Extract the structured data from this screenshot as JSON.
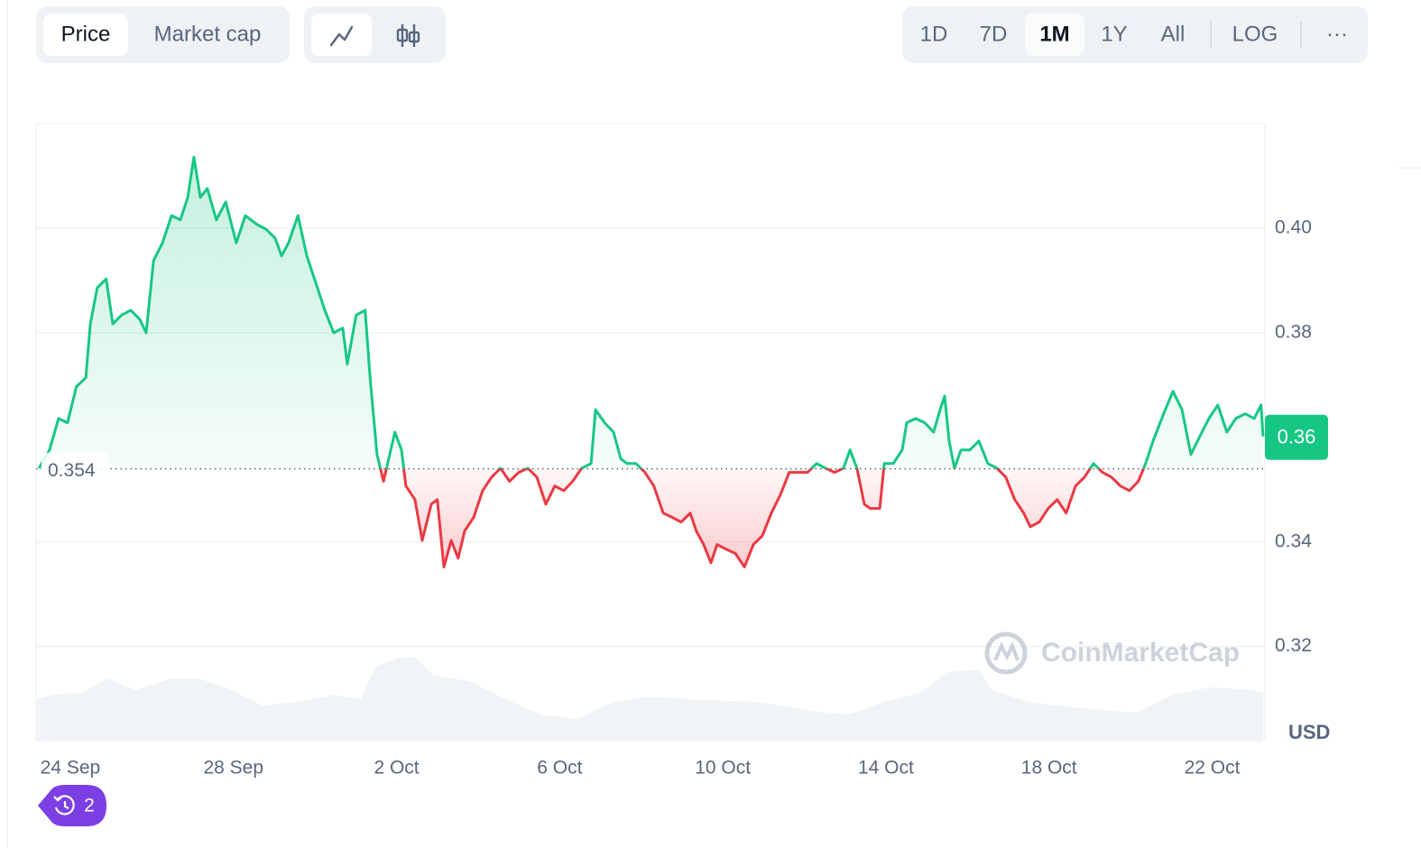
{
  "toolbar": {
    "price": "Price",
    "market_cap": "Market cap",
    "ranges": [
      "1D",
      "7D",
      "1M",
      "1Y",
      "All"
    ],
    "active_range_index": 2,
    "log": "LOG",
    "more": "···"
  },
  "badge": "2",
  "watermark": "CoinMarketCap",
  "chart_data": {
    "type": "line",
    "x": [
      -0.77,
      -0.51,
      -0.29,
      -0.07,
      0.15,
      0.38,
      0.49,
      0.66,
      0.88,
      1.04,
      1.26,
      1.48,
      1.7,
      1.86,
      2.04,
      2.26,
      2.48,
      2.7,
      2.88,
      3.03,
      3.19,
      3.36,
      3.58,
      3.81,
      4.07,
      4.29,
      4.58,
      4.8,
      5.02,
      5.18,
      5.35,
      5.58,
      5.8,
      6.02,
      6.24,
      6.46,
      6.68,
      6.79,
      7.01,
      7.23,
      7.35,
      7.52,
      7.68,
      7.83,
      7.96,
      8.12,
      8.23,
      8.45,
      8.63,
      8.85,
      9.0,
      9.16,
      9.34,
      9.51,
      9.67,
      9.89,
      10.11,
      10.33,
      10.55,
      10.77,
      11.0,
      11.22,
      11.44,
      11.66,
      11.88,
      12.1,
      12.32,
      12.54,
      12.77,
      12.88,
      13.1,
      13.32,
      13.5,
      13.65,
      13.87,
      14.09,
      14.31,
      14.54,
      14.76,
      14.98,
      15.2,
      15.35,
      15.53,
      15.71,
      15.86,
      16.08,
      16.31,
      16.53,
      16.75,
      16.97,
      17.19,
      17.41,
      17.63,
      17.85,
      18.08,
      18.3,
      18.52,
      18.74,
      18.96,
      19.12,
      19.29,
      19.47,
      19.62,
      19.85,
      19.96,
      20.18,
      20.4,
      20.51,
      20.73,
      20.95,
      21.17,
      21.33,
      21.44,
      21.55,
      21.68,
      21.84,
      22.06,
      22.28,
      22.5,
      22.72,
      22.94,
      23.16,
      23.38,
      23.54,
      23.76,
      23.98,
      24.2,
      24.42,
      24.65,
      24.87,
      25.09,
      25.31,
      25.53,
      25.75,
      25.97,
      26.19,
      26.37,
      26.55,
      26.81,
      27.04,
      27.26,
      27.48,
      27.7,
      27.92,
      28.14,
      28.36,
      28.58,
      28.81,
      29.03,
      29.2,
      29.25
    ],
    "values": [
      0.3541,
      0.3576,
      0.3636,
      0.3628,
      0.3697,
      0.3714,
      0.3817,
      0.3886,
      0.3903,
      0.3817,
      0.3834,
      0.3843,
      0.3826,
      0.38,
      0.3938,
      0.3972,
      0.4024,
      0.4016,
      0.4059,
      0.4136,
      0.4059,
      0.4076,
      0.4016,
      0.405,
      0.3972,
      0.4024,
      0.4007,
      0.3998,
      0.3981,
      0.3947,
      0.3972,
      0.4024,
      0.3947,
      0.3895,
      0.3843,
      0.38,
      0.3809,
      0.374,
      0.3834,
      0.3843,
      0.3714,
      0.3567,
      0.3516,
      0.3567,
      0.361,
      0.3576,
      0.3507,
      0.3481,
      0.3403,
      0.3472,
      0.3481,
      0.3352,
      0.3403,
      0.3369,
      0.3421,
      0.3447,
      0.3498,
      0.3524,
      0.3541,
      0.3516,
      0.3533,
      0.3541,
      0.3524,
      0.3472,
      0.3507,
      0.3498,
      0.3516,
      0.3541,
      0.355,
      0.3653,
      0.3628,
      0.361,
      0.3559,
      0.355,
      0.355,
      0.3533,
      0.3507,
      0.3455,
      0.3447,
      0.3438,
      0.3455,
      0.3421,
      0.3395,
      0.336,
      0.3395,
      0.3386,
      0.3378,
      0.3352,
      0.3395,
      0.3412,
      0.3455,
      0.349,
      0.3533,
      0.3533,
      0.3533,
      0.355,
      0.3541,
      0.3533,
      0.3541,
      0.3576,
      0.3541,
      0.3472,
      0.3464,
      0.3464,
      0.355,
      0.355,
      0.3576,
      0.3628,
      0.3636,
      0.3628,
      0.361,
      0.3653,
      0.3679,
      0.3593,
      0.3541,
      0.3576,
      0.3576,
      0.3593,
      0.355,
      0.3541,
      0.3524,
      0.3481,
      0.3455,
      0.3429,
      0.3438,
      0.3464,
      0.3481,
      0.3455,
      0.3507,
      0.3524,
      0.355,
      0.3533,
      0.3524,
      0.3507,
      0.3498,
      0.3516,
      0.355,
      0.3593,
      0.3645,
      0.3688,
      0.3653,
      0.3567,
      0.3602,
      0.3636,
      0.3662,
      0.361,
      0.3636,
      0.3645,
      0.3636,
      0.3662,
      0.3602
    ],
    "colors": {
      "up": "#16c784",
      "down": "#ea3943"
    },
    "baseline": 0.354,
    "current_price": 0.36,
    "xlim": [
      -0.84,
      29.25
    ],
    "xticks": [
      {
        "value": 0,
        "label": "24 Sep"
      },
      {
        "value": 4,
        "label": "28 Sep"
      },
      {
        "value": 8,
        "label": "2 Oct"
      },
      {
        "value": 12,
        "label": "6 Oct"
      },
      {
        "value": 16,
        "label": "10 Oct"
      },
      {
        "value": 20,
        "label": "14 Oct"
      },
      {
        "value": 24,
        "label": "18 Oct"
      },
      {
        "value": 28,
        "label": "22 Oct"
      }
    ],
    "ylim": [
      0.302,
      0.42
    ],
    "yticks": [
      0.32,
      0.34,
      0.38,
      {
        "value": 0.4,
        "label": "0.40"
      }
    ],
    "unit_label": "USD",
    "grid": true
  }
}
